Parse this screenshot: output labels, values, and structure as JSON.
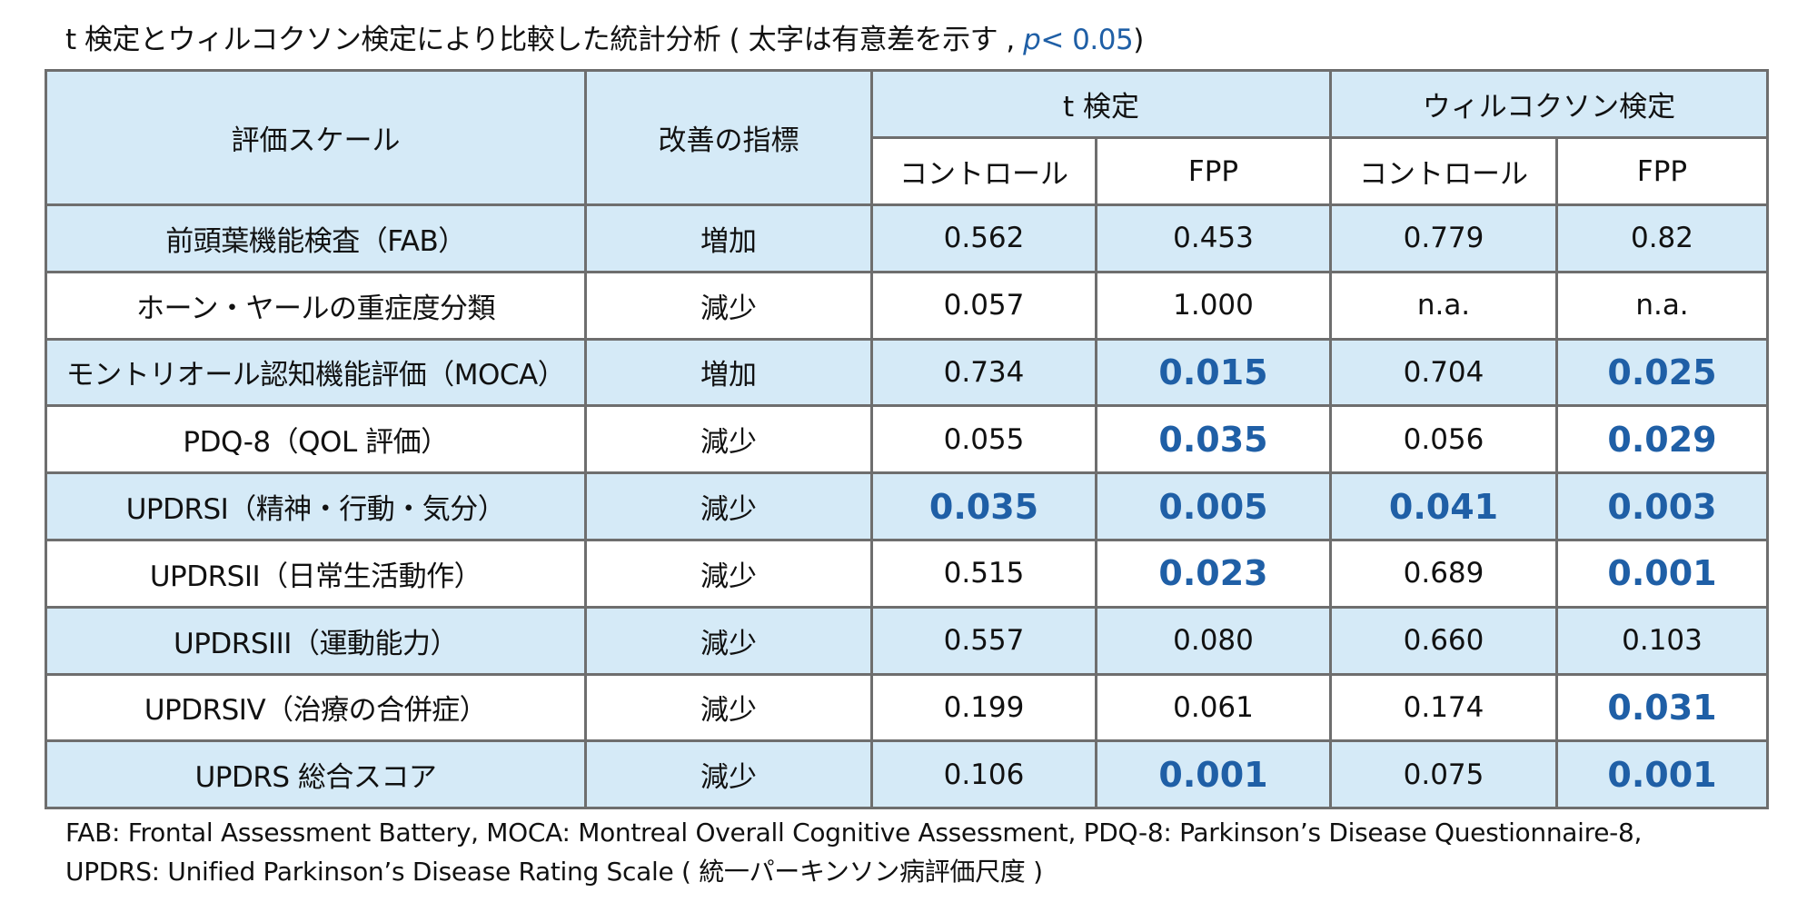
{
  "title": {
    "main": "t 検定とウィルコクソン検定により比較した統計分析 ( 太字は有意差を示す , ",
    "p_symbol": "p",
    "p_rest": "< 0.05",
    "close": ")"
  },
  "header": {
    "scale": "評価スケール",
    "indicator": "改善の指標",
    "ttest": "t 検定",
    "wilcoxon": "ウィルコクソン検定",
    "control": "コントロール",
    "fpp": "FPP"
  },
  "colors": {
    "significant": "#1f5fa6",
    "row_blue": "#d5eaf7",
    "border": "#6e6e6e"
  },
  "rows": [
    {
      "scale": "前頭葉機能検査（FAB）",
      "indicator": "増加",
      "t_control": "0.562",
      "t_fpp": "0.453",
      "w_control": "0.779",
      "w_fpp": "0.82",
      "sig": [
        false,
        false,
        false,
        false
      ]
    },
    {
      "scale": "ホーン・ヤールの重症度分類",
      "indicator": "減少",
      "t_control": "0.057",
      "t_fpp": "1.000",
      "w_control": "n.a.",
      "w_fpp": "n.a.",
      "sig": [
        false,
        false,
        false,
        false
      ]
    },
    {
      "scale": "モントリオール認知機能評価（MOCA）",
      "indicator": "増加",
      "t_control": "0.734",
      "t_fpp": "0.015",
      "w_control": "0.704",
      "w_fpp": "0.025",
      "sig": [
        false,
        true,
        false,
        true
      ]
    },
    {
      "scale": "PDQ-8（QOL 評価）",
      "indicator": "減少",
      "t_control": "0.055",
      "t_fpp": "0.035",
      "w_control": "0.056",
      "w_fpp": "0.029",
      "sig": [
        false,
        true,
        false,
        true
      ]
    },
    {
      "scale": "UPDRSI（精神・行動・気分）",
      "indicator": "減少",
      "t_control": "0.035",
      "t_fpp": "0.005",
      "w_control": "0.041",
      "w_fpp": "0.003",
      "sig": [
        true,
        true,
        true,
        true
      ]
    },
    {
      "scale": "UPDRSII（日常生活動作）",
      "indicator": "減少",
      "t_control": "0.515",
      "t_fpp": "0.023",
      "w_control": "0.689",
      "w_fpp": "0.001",
      "sig": [
        false,
        true,
        false,
        true
      ]
    },
    {
      "scale": "UPDRSIII（運動能力）",
      "indicator": "減少",
      "t_control": "0.557",
      "t_fpp": "0.080",
      "w_control": "0.660",
      "w_fpp": "0.103",
      "sig": [
        false,
        false,
        false,
        false
      ]
    },
    {
      "scale": "UPDRSIV（治療の合併症）",
      "indicator": "減少",
      "t_control": "0.199",
      "t_fpp": "0.061",
      "w_control": "0.174",
      "w_fpp": "0.031",
      "sig": [
        false,
        false,
        false,
        true
      ]
    },
    {
      "scale": "UPDRS 総合スコア",
      "indicator": "減少",
      "t_control": "0.106",
      "t_fpp": "0.001",
      "w_control": "0.075",
      "w_fpp": "0.001",
      "sig": [
        false,
        true,
        false,
        true
      ]
    }
  ],
  "footer": {
    "line1": "FAB: Frontal Assessment Battery, MOCA: Montreal Overall Cognitive Assessment, PDQ-8: Parkinson’s Disease Questionnaire-8,",
    "line2": "UPDRS: Unified Parkinson’s Disease Rating Scale ( 統一パーキンソン病評価尺度 )"
  }
}
